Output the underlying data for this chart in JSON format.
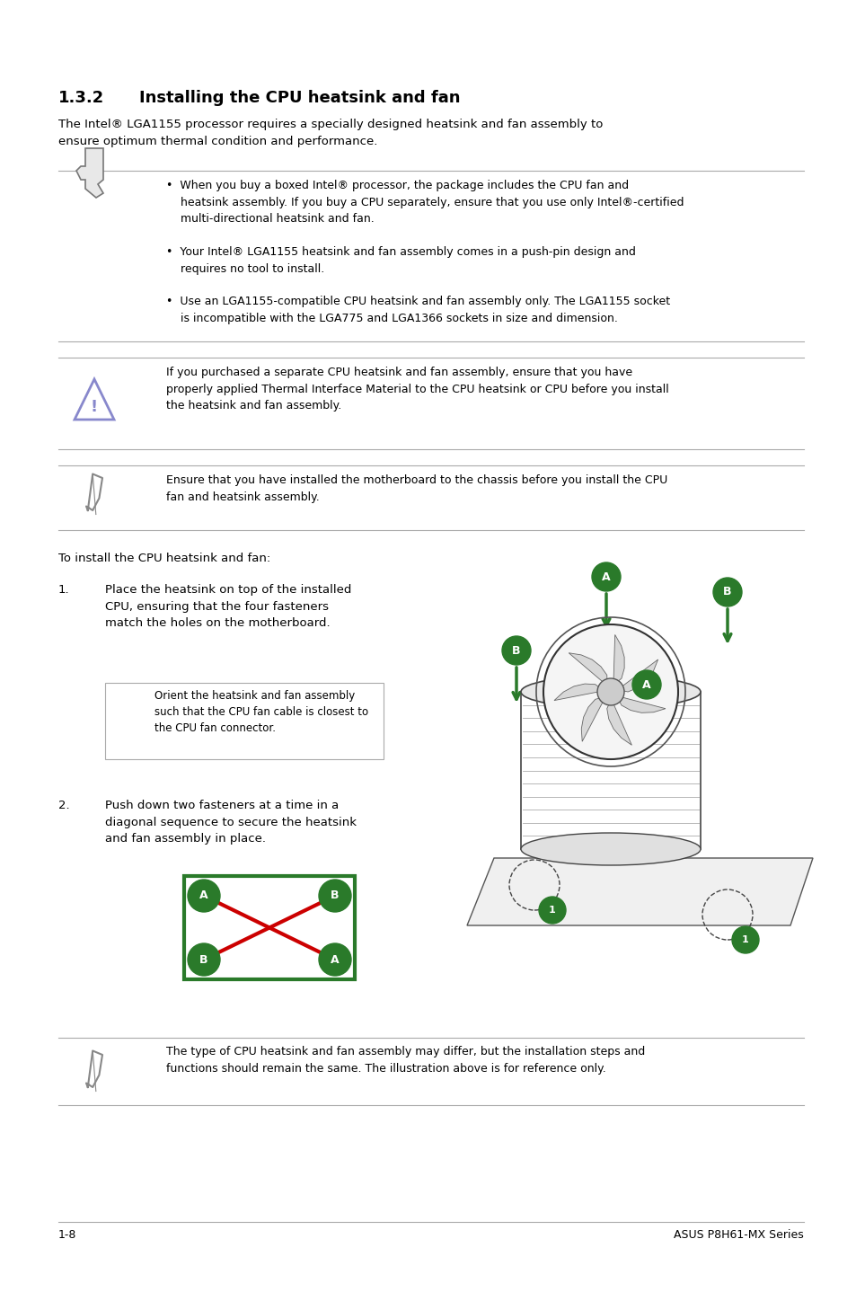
{
  "section_number": "1.3.2",
  "section_title": "Installing the CPU heatsink and fan",
  "intro_text": "The Intel® LGA1155 processor requires a specially designed heatsink and fan assembly to\nensure optimum thermal condition and performance.",
  "bullet1": "When you buy a boxed Intel® processor, the package includes the CPU fan and\n   heatsink assembly. If you buy a CPU separately, ensure that you use only Intel®-certified\n   multi-directional heatsink and fan.",
  "bullet2": "Your Intel® LGA1155 heatsink and fan assembly comes in a push-pin design and\n   requires no tool to install.",
  "bullet3": "Use an LGA1155-compatible CPU heatsink and fan assembly only. The LGA1155 socket\n   is incompatible with the LGA775 and LGA1366 sockets in size and dimension.",
  "caution_text": "If you purchased a separate CPU heatsink and fan assembly, ensure that you have\nproperly applied Thermal Interface Material to the CPU heatsink or CPU before you install\nthe heatsink and fan assembly.",
  "note1_text": "Ensure that you have installed the motherboard to the chassis before you install the CPU\nfan and heatsink assembly.",
  "install_text": "To install the CPU heatsink and fan:",
  "step1_num": "1.",
  "step1_text": "Place the heatsink on top of the installed\nCPU, ensuring that the four fasteners\nmatch the holes on the motherboard.",
  "step1_note": "Orient the heatsink and fan assembly\nsuch that the CPU fan cable is closest to\nthe CPU fan connector.",
  "step2_num": "2.",
  "step2_text": "Push down two fasteners at a time in a\ndiagonal sequence to secure the heatsink\nand fan assembly in place.",
  "note2_text": "The type of CPU heatsink and fan assembly may differ, but the installation steps and\nfunctions should remain the same. The illustration above is for reference only.",
  "footer_left": "1-8",
  "footer_right": "ASUS P8H61-MX Series",
  "bg_color": "#ffffff",
  "text_color": "#000000",
  "line_color": "#aaaaaa",
  "green_color": "#2a7a2a",
  "red_color": "#cc0000",
  "ml": 0.068,
  "mr": 0.94,
  "icon_col": 0.11,
  "text_col": 0.195
}
